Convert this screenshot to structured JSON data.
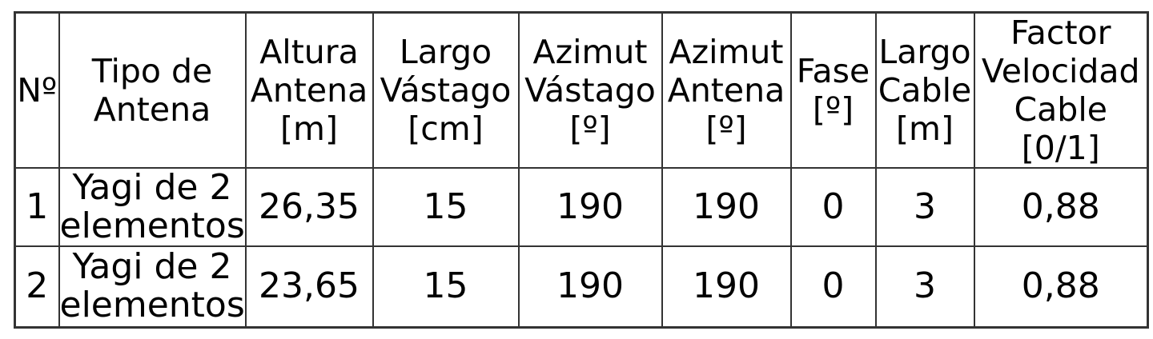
{
  "table": {
    "headers": [
      "Nº",
      "Tipo de\nAntena",
      "Altura\nAntena\n[m]",
      "Largo\nVástago\n[cm]",
      "Azimut\nVástago\n[º]",
      "Azimut\nAntena\n[º]",
      "Fase\n[º]",
      "Largo\nCable\n[m]",
      "Factor\nVelocidad\nCable\n[0/1]"
    ],
    "rows": [
      {
        "cells": [
          "1",
          "Yagi de 2\nelementos",
          "26,35",
          "15",
          "190",
          "190",
          "0",
          "3",
          "0,88"
        ]
      },
      {
        "cells": [
          "2",
          "Yagi de 2\nelementos",
          "23,65",
          "15",
          "190",
          "190",
          "0",
          "3",
          "0,88"
        ]
      }
    ]
  },
  "colors": {
    "border": "#333333",
    "background": "#ffffff",
    "text": "#000000"
  }
}
